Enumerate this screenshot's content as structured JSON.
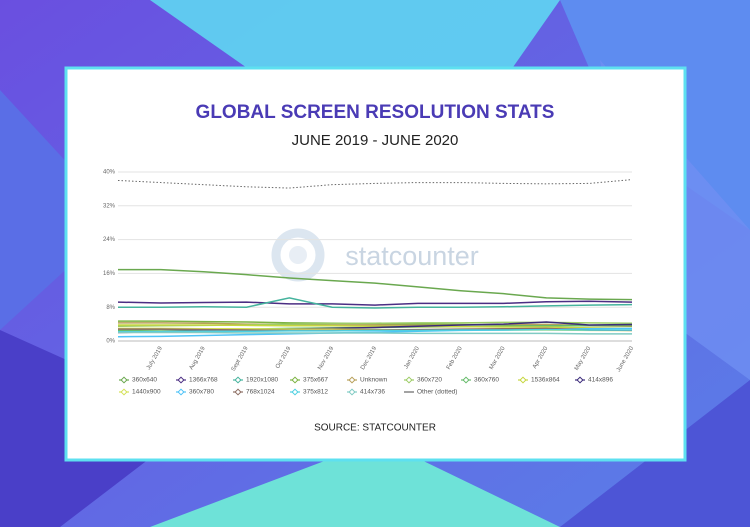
{
  "chart_data": {
    "type": "line",
    "title": "GLOBAL SCREEN RESOLUTION STATS",
    "subtitle": "JUNE 2019 - JUNE 2020",
    "source": "SOURCE: STATCOUNTER",
    "watermark": "statcounter",
    "categories": [
      null,
      "July 2019",
      "Aug 2019",
      "Sept 2019",
      "Oct 2019",
      "Nov 2019",
      "Dec 2019",
      "Jan 2020",
      "Feb 2020",
      "Mar 2020",
      "Apr 2020",
      "May 2020",
      "June 2020"
    ],
    "ylim": [
      0,
      40
    ],
    "yticks": [
      {
        "value": 0,
        "label": "0%"
      },
      {
        "value": 8,
        "label": "8%"
      },
      {
        "value": 16,
        "label": "16%"
      },
      {
        "value": 24,
        "label": "24%"
      },
      {
        "value": 32,
        "label": "32%"
      },
      {
        "value": 40,
        "label": "40%"
      }
    ],
    "grid": true,
    "legend": "bottom",
    "series": [
      {
        "name": "360x640",
        "color": "#6aa84f",
        "values": [
          16.9,
          16.9,
          16.4,
          15.7,
          14.9,
          14.3,
          13.7,
          12.8,
          11.9,
          11.2,
          10.2,
          9.9,
          9.8
        ]
      },
      {
        "name": "1366x768",
        "color": "#4b2e83",
        "values": [
          9.2,
          9.0,
          9.1,
          9.2,
          8.8,
          8.8,
          8.5,
          8.9,
          8.9,
          8.9,
          9.3,
          9.4,
          9.2
        ]
      },
      {
        "name": "1920x1080",
        "color": "#45b39d",
        "values": [
          8.0,
          8.0,
          8.1,
          8.0,
          10.2,
          8.0,
          7.8,
          8.0,
          8.0,
          8.1,
          8.3,
          8.5,
          8.6
        ]
      },
      {
        "name": "375x667",
        "color": "#7cb342",
        "values": [
          4.7,
          4.7,
          4.6,
          4.5,
          4.3,
          4.2,
          4.1,
          4.0,
          3.9,
          3.8,
          3.7,
          3.6,
          3.5
        ]
      },
      {
        "name": "Unknown",
        "color": "#b8a05a",
        "values": [
          4.3,
          4.3,
          4.2,
          4.0,
          3.9,
          3.8,
          3.8,
          3.7,
          3.8,
          3.9,
          3.9,
          3.7,
          3.6
        ]
      },
      {
        "name": "360x720",
        "color": "#9ccc65",
        "values": [
          3.5,
          3.6,
          3.7,
          3.8,
          4.0,
          4.1,
          4.2,
          4.3,
          4.3,
          4.4,
          4.4,
          4.3,
          4.2
        ]
      },
      {
        "name": "360x760",
        "color": "#66bb6a",
        "values": [
          2.5,
          2.6,
          2.7,
          2.8,
          3.0,
          3.1,
          3.2,
          3.3,
          3.4,
          3.5,
          3.6,
          3.7,
          3.8
        ]
      },
      {
        "name": "1536x864",
        "color": "#c6d63f",
        "values": [
          3.8,
          3.8,
          3.8,
          3.7,
          3.6,
          3.6,
          3.5,
          3.4,
          3.4,
          3.3,
          3.3,
          3.1,
          3.0
        ]
      },
      {
        "name": "414x896",
        "color": "#3b2a7a",
        "values": [
          2.0,
          2.2,
          2.4,
          2.6,
          2.8,
          3.0,
          3.2,
          3.5,
          3.8,
          4.0,
          4.5,
          3.8,
          3.9
        ]
      },
      {
        "name": "1440x900",
        "color": "#d4e157",
        "values": [
          3.0,
          3.0,
          2.9,
          2.9,
          2.8,
          2.8,
          2.7,
          2.7,
          2.6,
          2.6,
          2.6,
          2.5,
          2.5
        ]
      },
      {
        "name": "360x780",
        "color": "#4fc3f7",
        "values": [
          1.0,
          1.1,
          1.3,
          1.5,
          1.7,
          1.9,
          2.1,
          2.3,
          2.5,
          2.6,
          2.8,
          2.9,
          3.0
        ]
      },
      {
        "name": "768x1024",
        "color": "#8d6e63",
        "values": [
          2.8,
          2.8,
          2.7,
          2.6,
          2.5,
          2.5,
          2.6,
          2.7,
          2.8,
          2.9,
          3.0,
          2.6,
          2.5
        ]
      },
      {
        "name": "375x812",
        "color": "#4dd0e1",
        "values": [
          2.2,
          2.2,
          2.3,
          2.3,
          2.4,
          2.4,
          2.5,
          2.5,
          2.6,
          2.6,
          2.7,
          2.6,
          2.6
        ]
      },
      {
        "name": "414x736",
        "color": "#80cbc4",
        "values": [
          2.0,
          2.0,
          2.0,
          1.9,
          1.9,
          1.9,
          1.9,
          1.8,
          1.8,
          1.8,
          1.8,
          1.7,
          1.7
        ]
      },
      {
        "name": "Other (dotted)",
        "color": "#666666",
        "dash": "dotted",
        "values": [
          38.0,
          37.5,
          37.0,
          36.5,
          36.2,
          37.0,
          37.3,
          37.5,
          37.5,
          37.3,
          37.2,
          37.3,
          38.2
        ]
      }
    ]
  }
}
